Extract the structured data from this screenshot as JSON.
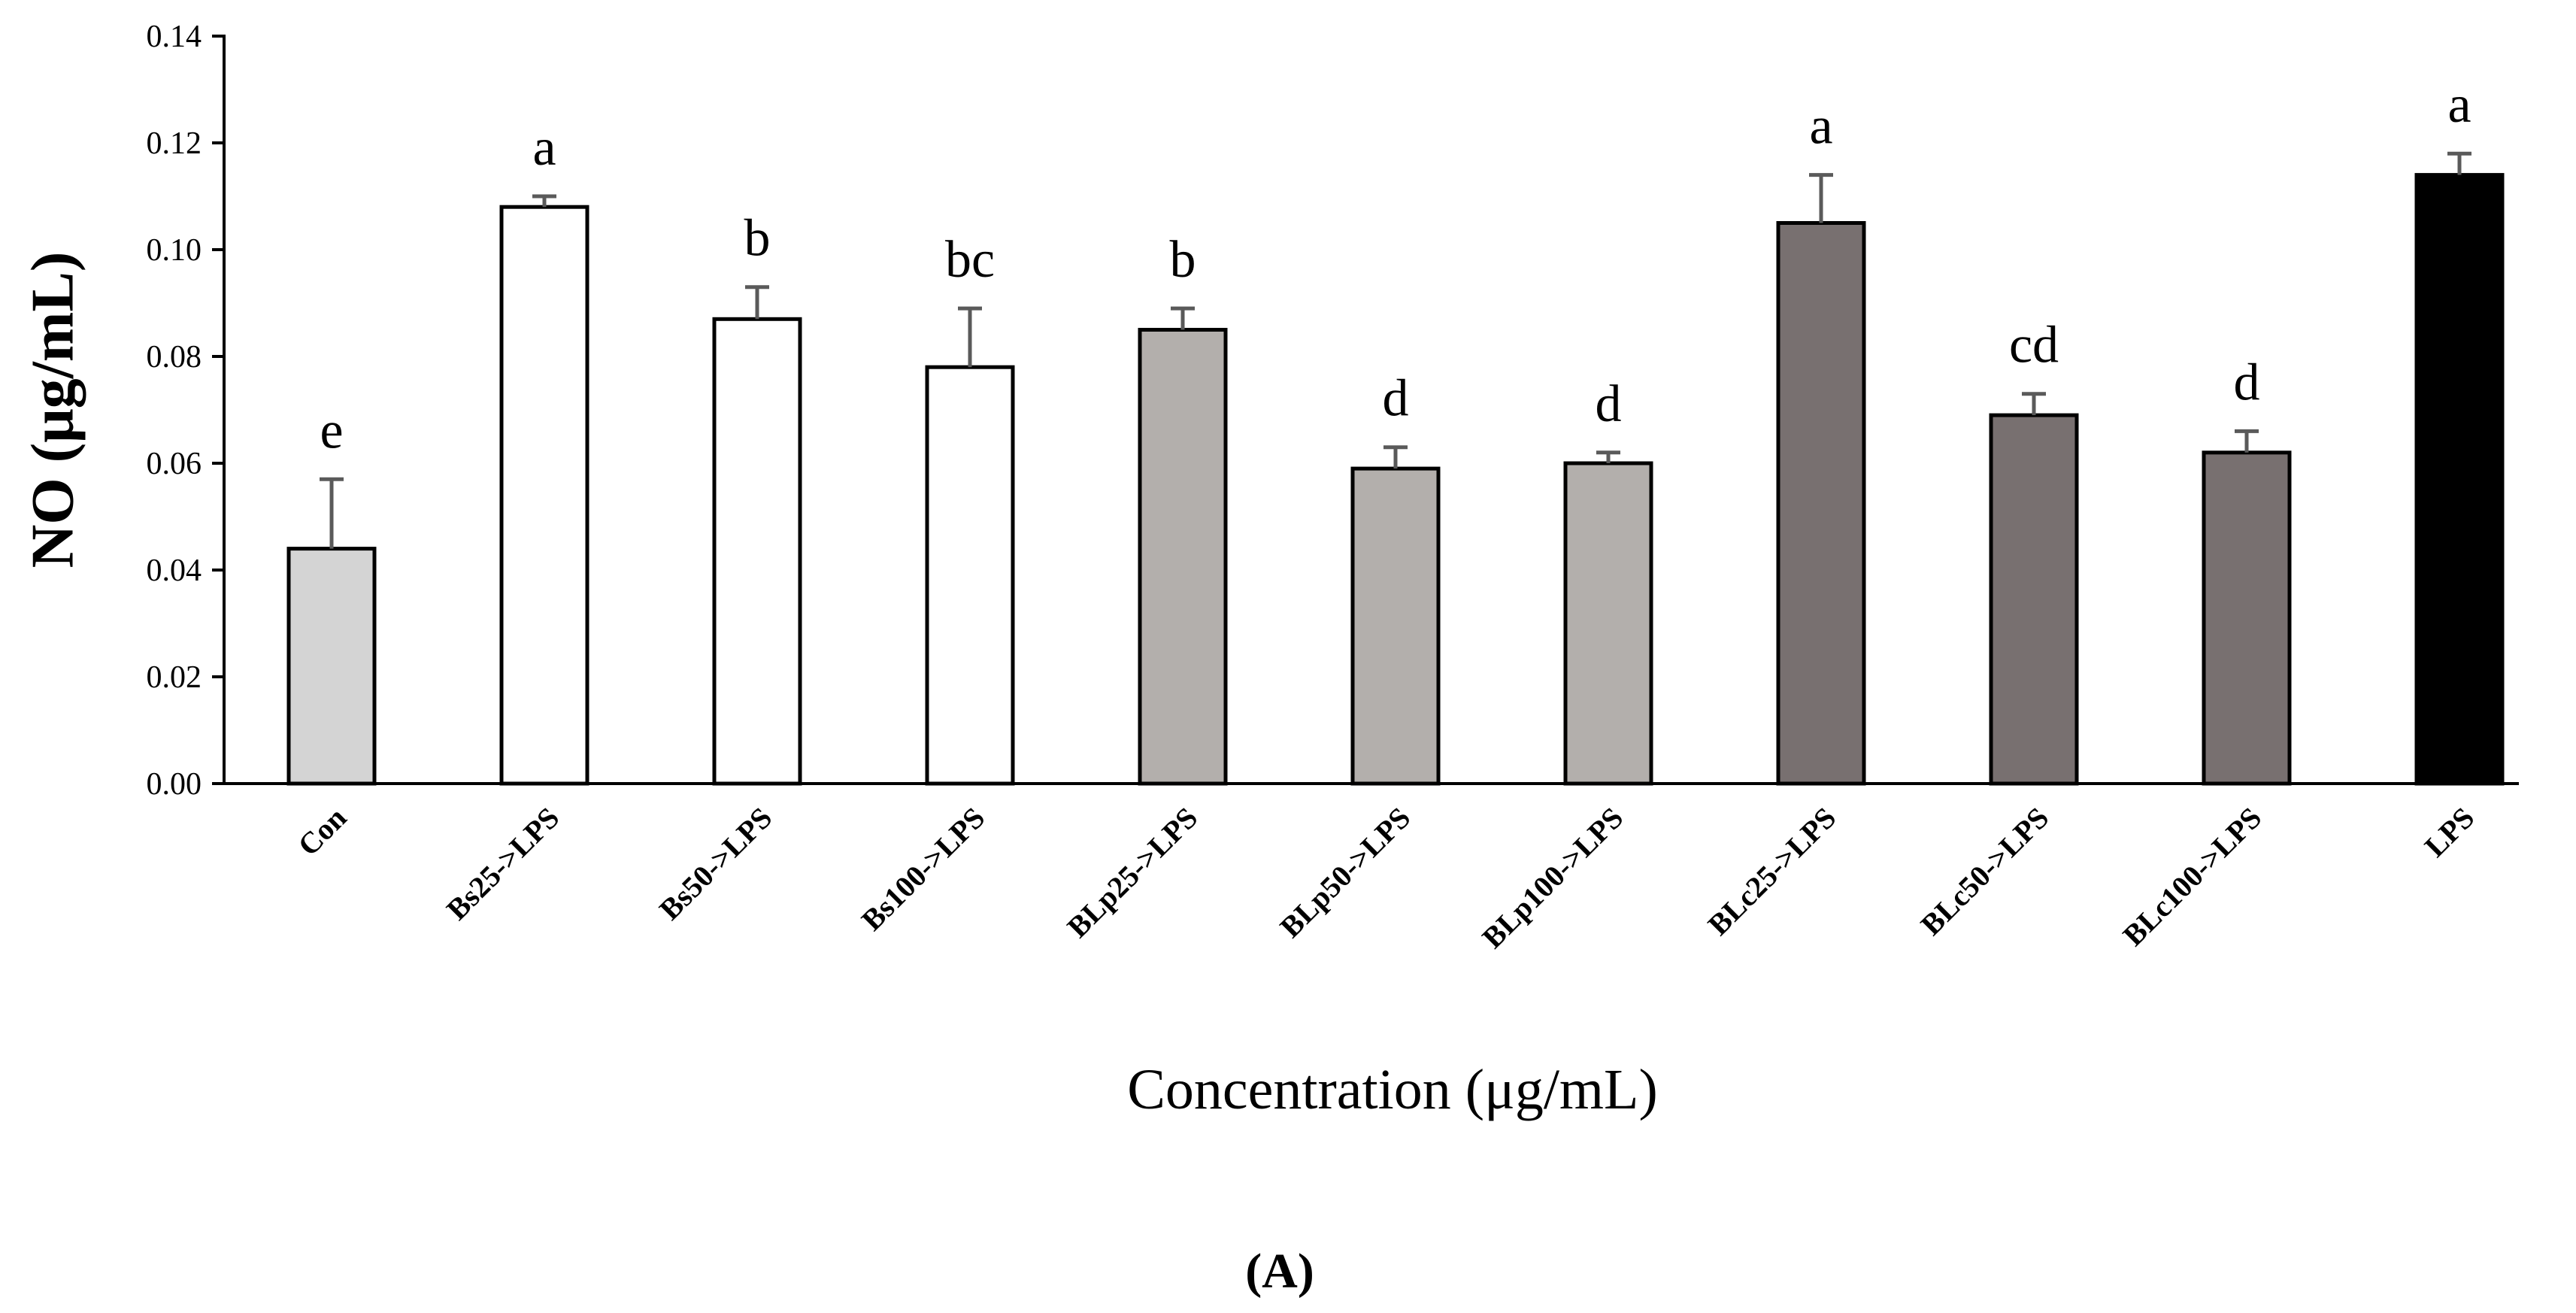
{
  "chart_data": {
    "type": "bar",
    "title": "",
    "panel_label": "(A)",
    "xlabel": "Concentration (μg/mL)",
    "ylabel": "NO (μg/mL)",
    "ylim": [
      0,
      0.14
    ],
    "yticks": [
      "0.00",
      "0.02",
      "0.04",
      "0.06",
      "0.08",
      "0.10",
      "0.12",
      "0.14"
    ],
    "grid": false,
    "legend": "none",
    "categories": [
      "Con",
      "Bs25->LPS",
      "Bs50->LPS",
      "Bs100->LPS",
      "BLp25->LPS",
      "BLp50->LPS",
      "BLp100->LPS",
      "BLc25->LPS",
      "BLc50->LPS",
      "BLc100->LPS",
      "LPS"
    ],
    "values": [
      0.044,
      0.108,
      0.087,
      0.078,
      0.085,
      0.059,
      0.06,
      0.105,
      0.069,
      0.062,
      0.114
    ],
    "errors": [
      0.013,
      0.002,
      0.006,
      0.011,
      0.004,
      0.004,
      0.002,
      0.009,
      0.004,
      0.004,
      0.004
    ],
    "significance": [
      "e",
      "a",
      "b",
      "bc",
      "b",
      "d",
      "d",
      "a",
      "cd",
      "d",
      "a"
    ],
    "bar_colors": [
      "#d4d4d4",
      "#ffffff",
      "#ffffff",
      "#ffffff",
      "#b3afac",
      "#b3afac",
      "#b3afac",
      "#787070",
      "#787070",
      "#787070",
      "#000000"
    ],
    "error_bar_color": "#5a5a5a"
  }
}
